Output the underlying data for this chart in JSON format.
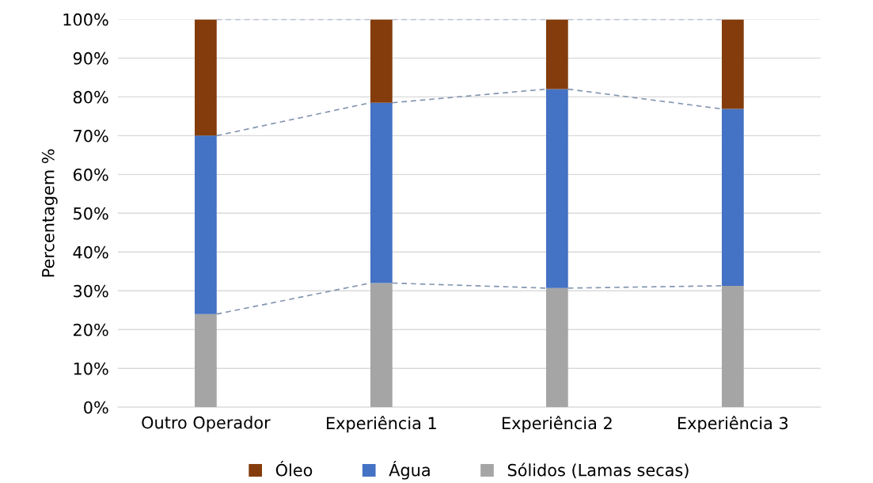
{
  "chart_data": {
    "type": "bar",
    "stacked": true,
    "ylabel": "Percentagem %",
    "categories": [
      "Outro Operador",
      "Experiência 1",
      "Experiência 2",
      "Experiência 3"
    ],
    "series": [
      {
        "name": "Sólidos (Lamas secas)",
        "color": "#a5a5a5",
        "values": [
          24,
          32,
          30.7,
          31.3
        ]
      },
      {
        "name": "Água",
        "color": "#4472c4",
        "values": [
          46,
          46.5,
          51.3,
          45.6
        ]
      },
      {
        "name": "Óleo",
        "color": "#843c0c",
        "values": [
          30,
          21.5,
          18,
          23.1
        ]
      }
    ],
    "ylim": [
      0,
      100
    ],
    "yticks": [
      {
        "value": 0,
        "label": "0%"
      },
      {
        "value": 10,
        "label": "10%"
      },
      {
        "value": 20,
        "label": "20%"
      },
      {
        "value": 30,
        "label": "30%"
      },
      {
        "value": 40,
        "label": "40%"
      },
      {
        "value": 50,
        "label": "50%"
      },
      {
        "value": 60,
        "label": "60%"
      },
      {
        "value": 70,
        "label": "70%"
      },
      {
        "value": 80,
        "label": "80%"
      },
      {
        "value": 90,
        "label": "90%"
      },
      {
        "value": 100,
        "label": "100%"
      }
    ],
    "grid": "y",
    "legend": "bottom"
  }
}
